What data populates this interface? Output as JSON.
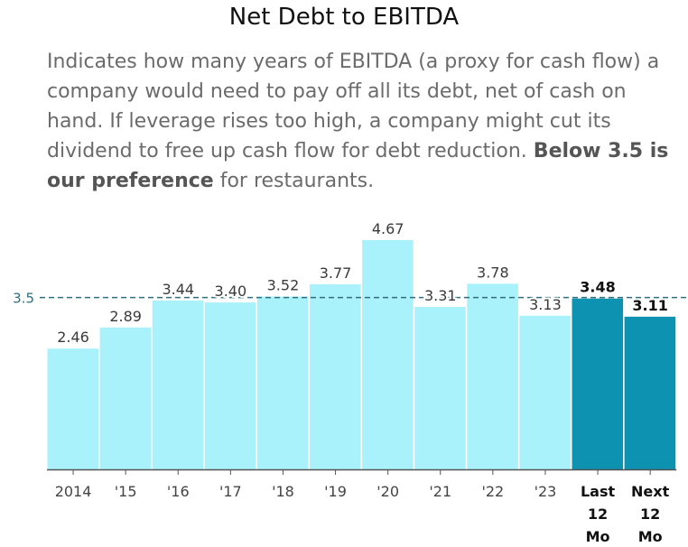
{
  "title": "Net Debt to EBITDA",
  "description": {
    "pre": "Indicates how many years of EBITDA (a proxy for cash flow) a company would need to pay off all its debt, net of cash on hand. If leverage rises too high, a company might cut its dividend to free up cash flow for debt reduction. ",
    "bold": "Below 3.5 is our preference",
    "post": " for restaurants."
  },
  "chart_data": {
    "type": "bar",
    "categories": [
      "2014",
      "'15",
      "'16",
      "'17",
      "'18",
      "'19",
      "'20",
      "'21",
      "'22",
      "'23",
      "Last 12 Mo",
      "Next 12 Mo"
    ],
    "category_lines": [
      [
        "2014"
      ],
      [
        "'15"
      ],
      [
        "'16"
      ],
      [
        "'17"
      ],
      [
        "'18"
      ],
      [
        "'19"
      ],
      [
        "'20"
      ],
      [
        "'21"
      ],
      [
        "'22"
      ],
      [
        "'23"
      ],
      [
        "Last",
        "12",
        "Mo"
      ],
      [
        "Next",
        "12",
        "Mo"
      ]
    ],
    "values": [
      2.46,
      2.89,
      3.44,
      3.4,
      3.52,
      3.77,
      4.67,
      3.31,
      3.78,
      3.13,
      3.48,
      3.11
    ],
    "value_labels": [
      "2.46",
      "2.89",
      "3.44",
      "3.40",
      "3.52",
      "3.77",
      "4.67",
      "3.31",
      "3.78",
      "3.13",
      "3.48",
      "3.11"
    ],
    "highlight": [
      false,
      false,
      false,
      false,
      false,
      false,
      false,
      false,
      false,
      false,
      true,
      true
    ],
    "reference_line": {
      "value": 3.5,
      "label": "3.5"
    },
    "ylim": [
      0,
      4.67
    ],
    "colors": {
      "bar": "#a9f1fb",
      "highlight": "#0d92b1",
      "reference": "#2f6f7c"
    }
  }
}
